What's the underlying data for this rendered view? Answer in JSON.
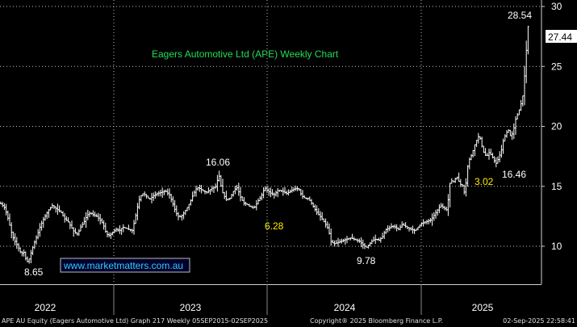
{
  "chart_data": {
    "type": "ohlc",
    "title": "Eagers Automotive Ltd (APE) Weekly Chart",
    "y_ticks": [
      10,
      15,
      20,
      25,
      30
    ],
    "ylim": [
      6.5,
      30.2
    ],
    "x_labels": [
      "2022",
      "2023",
      "2024",
      "2025"
    ],
    "last_price": "27.44",
    "annotations": [
      {
        "text": "28.54",
        "type": "high"
      },
      {
        "text": "16.06",
        "type": "high"
      },
      {
        "text": "8.65",
        "type": "low"
      },
      {
        "text": "9.78",
        "type": "low"
      },
      {
        "text": "16.46",
        "type": "low"
      },
      {
        "text": "6.28",
        "type": "move"
      },
      {
        "text": "3.02",
        "type": "move"
      }
    ],
    "watermark": "www.marketmatters.com.au",
    "series_path": [
      [
        0,
        13.6
      ],
      [
        6,
        13.2
      ],
      [
        10,
        12.3
      ],
      [
        14,
        11.2
      ],
      [
        17,
        10.6
      ],
      [
        22,
        10.0
      ],
      [
        26,
        9.4
      ],
      [
        30,
        9.5
      ],
      [
        33,
        8.65
      ],
      [
        36,
        8.9
      ],
      [
        40,
        9.8
      ],
      [
        43,
        10.4
      ],
      [
        46,
        10.9
      ],
      [
        50,
        11.7
      ],
      [
        55,
        12.4
      ],
      [
        60,
        13.0
      ],
      [
        65,
        13.4
      ],
      [
        70,
        13.1
      ],
      [
        75,
        12.9
      ],
      [
        80,
        12.3
      ],
      [
        85,
        12.0
      ],
      [
        88,
        11.6
      ],
      [
        92,
        11.2
      ],
      [
        96,
        11.0
      ],
      [
        100,
        11.6
      ],
      [
        104,
        12.0
      ],
      [
        108,
        12.6
      ],
      [
        112,
        12.8
      ],
      [
        116,
        12.6
      ],
      [
        120,
        12.5
      ],
      [
        124,
        12.2
      ],
      [
        128,
        11.8
      ],
      [
        132,
        11.0
      ],
      [
        136,
        10.9
      ],
      [
        140,
        11.2
      ],
      [
        144,
        11.4
      ],
      [
        148,
        11.3
      ],
      [
        152,
        11.6
      ],
      [
        156,
        11.5
      ],
      [
        160,
        11.4
      ],
      [
        164,
        11.3
      ],
      [
        168,
        12.5
      ],
      [
        172,
        13.8
      ],
      [
        176,
        14.4
      ],
      [
        180,
        14.3
      ],
      [
        185,
        13.9
      ],
      [
        190,
        14.2
      ],
      [
        195,
        14.4
      ],
      [
        200,
        14.5
      ],
      [
        205,
        14.6
      ],
      [
        210,
        14.3
      ],
      [
        214,
        13.6
      ],
      [
        218,
        12.8
      ],
      [
        222,
        12.4
      ],
      [
        226,
        12.6
      ],
      [
        230,
        13.0
      ],
      [
        235,
        13.6
      ],
      [
        240,
        14.4
      ],
      [
        244,
        14.9
      ],
      [
        248,
        14.8
      ],
      [
        252,
        14.6
      ],
      [
        256,
        14.5
      ],
      [
        260,
        14.7
      ],
      [
        264,
        14.9
      ],
      [
        268,
        15.0
      ],
      [
        271,
        16.06
      ],
      [
        275,
        14.6
      ],
      [
        280,
        13.9
      ],
      [
        285,
        14.0
      ],
      [
        290,
        14.7
      ],
      [
        294,
        14.9
      ],
      [
        298,
        14.1
      ],
      [
        302,
        13.6
      ],
      [
        306,
        13.5
      ],
      [
        310,
        13.3
      ],
      [
        315,
        13.2
      ],
      [
        320,
        13.8
      ],
      [
        324,
        14.2
      ],
      [
        328,
        14.9
      ],
      [
        332,
        14.6
      ],
      [
        336,
        14.4
      ],
      [
        340,
        14.3
      ],
      [
        345,
        14.7
      ],
      [
        350,
        14.6
      ],
      [
        355,
        14.4
      ],
      [
        360,
        14.6
      ],
      [
        365,
        14.8
      ],
      [
        370,
        14.8
      ],
      [
        374,
        14.2
      ],
      [
        378,
        14.0
      ],
      [
        382,
        14.0
      ],
      [
        386,
        13.6
      ],
      [
        390,
        13.1
      ],
      [
        394,
        12.7
      ],
      [
        398,
        12.4
      ],
      [
        403,
        11.9
      ],
      [
        407,
        11.4
      ],
      [
        410,
        10.4
      ],
      [
        414,
        10.2
      ],
      [
        418,
        10.3
      ],
      [
        422,
        10.4
      ],
      [
        426,
        10.5
      ],
      [
        430,
        10.6
      ],
      [
        434,
        10.7
      ],
      [
        438,
        10.6
      ],
      [
        442,
        10.5
      ],
      [
        446,
        10.4
      ],
      [
        450,
        10.1
      ],
      [
        454,
        9.9
      ],
      [
        458,
        10.2
      ],
      [
        462,
        10.5
      ],
      [
        466,
        10.6
      ],
      [
        470,
        10.5
      ],
      [
        474,
        10.8
      ],
      [
        478,
        11.4
      ],
      [
        482,
        11.5
      ],
      [
        486,
        11.7
      ],
      [
        490,
        11.6
      ],
      [
        494,
        11.4
      ],
      [
        498,
        11.8
      ],
      [
        502,
        11.7
      ],
      [
        506,
        11.5
      ],
      [
        510,
        11.4
      ],
      [
        514,
        11.3
      ],
      [
        518,
        11.6
      ],
      [
        522,
        11.9
      ],
      [
        526,
        12.0
      ],
      [
        530,
        12.1
      ],
      [
        534,
        12.2
      ],
      [
        538,
        12.6
      ],
      [
        542,
        13.0
      ],
      [
        546,
        13.4
      ],
      [
        550,
        13.2
      ],
      [
        554,
        13.0
      ],
      [
        558,
        15.5
      ],
      [
        562,
        15.4
      ],
      [
        566,
        15.8
      ],
      [
        570,
        15.2
      ],
      [
        574,
        15.0
      ],
      [
        576,
        14.2
      ],
      [
        579,
        16.5
      ],
      [
        582,
        17.3
      ],
      [
        585,
        17.7
      ],
      [
        588,
        18.4
      ],
      [
        591,
        18.9
      ],
      [
        594,
        19.3
      ],
      [
        597,
        18.4
      ],
      [
        600,
        17.7
      ],
      [
        603,
        17.5
      ],
      [
        606,
        17.8
      ],
      [
        609,
        17.6
      ],
      [
        612,
        17.2
      ],
      [
        615,
        16.9
      ],
      [
        618,
        17.4
      ],
      [
        621,
        17.9
      ],
      [
        624,
        18.9
      ],
      [
        627,
        19.4
      ],
      [
        630,
        19.7
      ],
      [
        633,
        19.1
      ],
      [
        636,
        19.6
      ],
      [
        639,
        20.6
      ],
      [
        642,
        21.1
      ],
      [
        645,
        21.7
      ],
      [
        648,
        22.6
      ],
      [
        650,
        24.2
      ],
      [
        652,
        26.1
      ],
      [
        654,
        28.54
      ],
      [
        656,
        27.44
      ]
    ]
  },
  "footer": {
    "left": "APE AU Equity (Eagers Automotive Ltd) Graph 217  Weekly 05SEP2015-02SEP2025",
    "center": "Copyright® 2025 Bloomberg Finance L.P.",
    "right": "02-Sep-2025 22:58:41"
  }
}
